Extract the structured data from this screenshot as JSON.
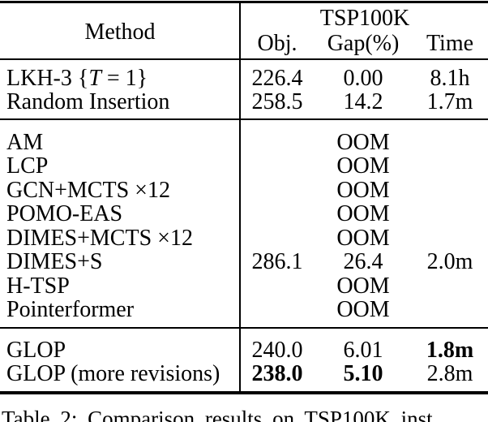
{
  "table": {
    "header": {
      "method": "Method",
      "group": "TSP100K",
      "obj": "Obj.",
      "gap": "Gap(%)",
      "time": "Time"
    },
    "rows": [
      {
        "method_pre": "LKH-3 {",
        "method_var": "T",
        "method_post": " = 1}",
        "obj": "226.4",
        "gap": "0.00",
        "time": "8.1h"
      },
      {
        "method": "Random Insertion",
        "obj": "258.5",
        "gap": "14.2",
        "time": "1.7m"
      },
      {
        "method": "AM",
        "obj": "",
        "gap": "OOM",
        "time": ""
      },
      {
        "method": "LCP",
        "obj": "",
        "gap": "OOM",
        "time": ""
      },
      {
        "method": "GCN+MCTS ×12",
        "obj": "",
        "gap": "OOM",
        "time": ""
      },
      {
        "method": "POMO-EAS",
        "obj": "",
        "gap": "OOM",
        "time": ""
      },
      {
        "method": "DIMES+MCTS ×12",
        "obj": "",
        "gap": "OOM",
        "time": ""
      },
      {
        "method": "DIMES+S",
        "obj": "286.1",
        "gap": "26.4",
        "time": "2.0m"
      },
      {
        "method": "H-TSP",
        "obj": "",
        "gap": "OOM",
        "time": ""
      },
      {
        "method": "Pointerformer",
        "obj": "",
        "gap": "OOM",
        "time": ""
      },
      {
        "method": "GLOP",
        "obj": "240.0",
        "gap": "6.01",
        "time": "1.8m"
      },
      {
        "method": "GLOP (more revisions)",
        "obj": "238.0",
        "gap": "5.10",
        "time": "2.8m"
      }
    ]
  },
  "caption": {
    "visible_text": "Table 2: Comparison results on TSP100K inst"
  }
}
